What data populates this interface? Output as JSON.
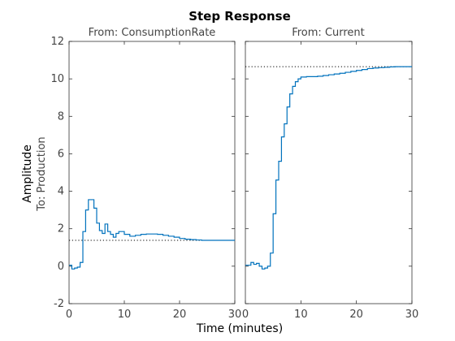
{
  "chart_data": {
    "type": "line",
    "title": "Step Response",
    "xlabel": "Time (minutes)",
    "ylabel": "Amplitude",
    "ylabel_sub": "To: Production",
    "xlim": [
      0,
      30
    ],
    "ylim": [
      -2,
      12
    ],
    "xticks": [
      0,
      10,
      20,
      30
    ],
    "yticks": [
      -2,
      0,
      2,
      4,
      6,
      8,
      10,
      12
    ],
    "grid": false,
    "line_color": "#0072bd",
    "panels": [
      {
        "title": "From: ConsumptionRate",
        "steady_state": 1.38,
        "series": [
          {
            "style": "stairs",
            "x": [
              0,
              0.5,
              1,
              1.5,
              2,
              2.5,
              3,
              3.5,
              4,
              4.5,
              5,
              5.5,
              6,
              6.5,
              7,
              7.5,
              8,
              8.5,
              9,
              10,
              11,
              12,
              13,
              14,
              15,
              16,
              17,
              18,
              19,
              20,
              21,
              22,
              23,
              24,
              25,
              26,
              27,
              28,
              29,
              30
            ],
            "y": [
              0.05,
              -0.15,
              -0.1,
              -0.05,
              0.2,
              1.85,
              3.0,
              3.55,
              3.55,
              3.1,
              2.3,
              1.9,
              1.75,
              2.25,
              1.85,
              1.7,
              1.55,
              1.75,
              1.85,
              1.7,
              1.6,
              1.65,
              1.7,
              1.72,
              1.72,
              1.7,
              1.65,
              1.6,
              1.55,
              1.48,
              1.44,
              1.42,
              1.4,
              1.38,
              1.38,
              1.38,
              1.38,
              1.38,
              1.38,
              1.38
            ]
          }
        ]
      },
      {
        "title": "From: Current",
        "steady_state": 10.65,
        "series": [
          {
            "style": "stairs",
            "x": [
              0,
              1,
              1.5,
              2,
              2.5,
              3,
              3.5,
              4,
              4.5,
              5,
              5.5,
              6,
              6.5,
              7,
              7.5,
              8,
              8.5,
              9,
              9.5,
              10,
              11,
              12,
              13,
              14,
              15,
              16,
              17,
              18,
              19,
              20,
              21,
              22,
              23,
              24,
              25,
              26,
              27,
              28,
              29,
              30
            ],
            "y": [
              0.05,
              0.2,
              0.1,
              0.15,
              0.0,
              -0.15,
              -0.1,
              0.0,
              0.7,
              2.8,
              4.6,
              5.6,
              6.9,
              7.6,
              8.5,
              9.2,
              9.6,
              9.85,
              10.0,
              10.1,
              10.12,
              10.12,
              10.14,
              10.18,
              10.22,
              10.26,
              10.3,
              10.35,
              10.4,
              10.45,
              10.5,
              10.55,
              10.58,
              10.6,
              10.62,
              10.64,
              10.65,
              10.65,
              10.65,
              10.65
            ]
          }
        ]
      }
    ]
  }
}
